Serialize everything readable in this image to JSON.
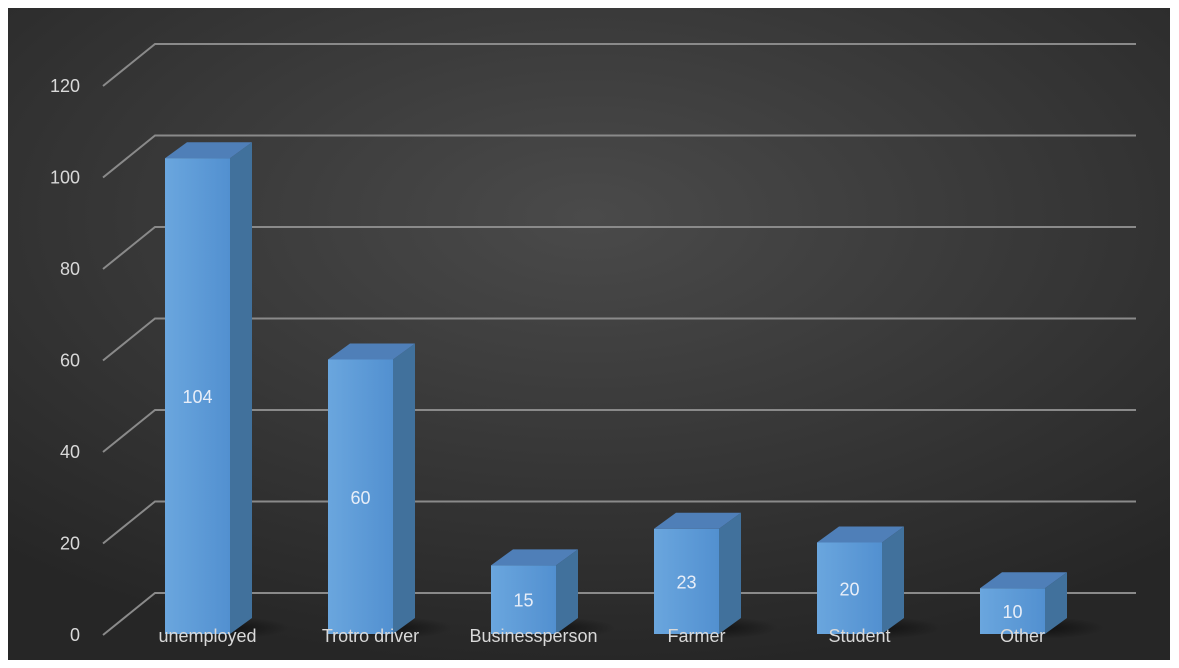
{
  "chart_data": {
    "type": "bar",
    "categories": [
      "unemployed",
      "Trotro driver",
      "Businessperson",
      "Farmer",
      "Student",
      "Other"
    ],
    "values": [
      104,
      60,
      15,
      23,
      20,
      10
    ],
    "title": "",
    "xlabel": "",
    "ylabel": "",
    "ylim": [
      0,
      120
    ],
    "yticks": [
      0,
      20,
      40,
      60,
      80,
      100,
      120
    ],
    "grid": true,
    "legend": "none",
    "style": "3d-column",
    "colors": {
      "bar_front": "#5b9bd5",
      "bar_front_light": "#6fa8dc",
      "bar_side": "#41719c",
      "bar_top": "#4f7fb8",
      "gridline": "#8a8a8a",
      "text": "#d9d9d9",
      "background": "#3a3a3a"
    }
  }
}
